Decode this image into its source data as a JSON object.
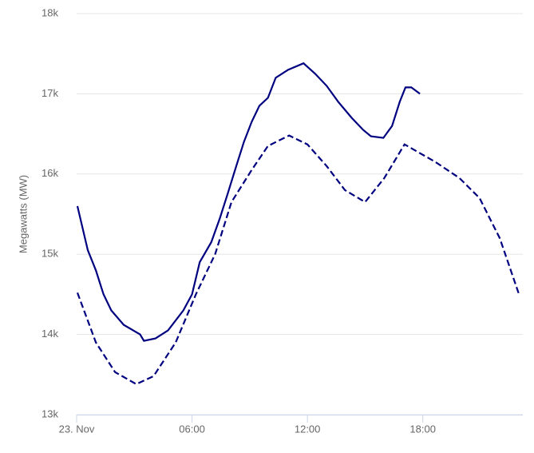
{
  "chart_data": {
    "type": "line",
    "y_label": "Megawatts (MW)",
    "xlim": [
      0,
      23.2
    ],
    "xticks": [
      {
        "value": 0,
        "label": "23. Nov"
      },
      {
        "value": 6,
        "label": "06:00"
      },
      {
        "value": 12,
        "label": "12:00"
      },
      {
        "value": 18,
        "label": "18:00"
      }
    ],
    "ylim": [
      13000,
      18000
    ],
    "yticks": [
      {
        "value": 13000,
        "label": "13k"
      },
      {
        "value": 14000,
        "label": "14k"
      },
      {
        "value": 15000,
        "label": "15k"
      },
      {
        "value": 16000,
        "label": "16k"
      },
      {
        "value": 17000,
        "label": "17k"
      },
      {
        "value": 18000,
        "label": "18k"
      }
    ],
    "grid": true,
    "series": [
      {
        "color": "#000080",
        "style": "solid",
        "x": [
          0.04,
          0.58,
          1,
          1.4,
          1.8,
          2.45,
          3.3,
          3.5,
          4.1,
          4.75,
          5.55,
          6,
          6.4,
          7,
          7.45,
          7.85,
          8.3,
          8.7,
          9.1,
          9.5,
          9.95,
          10.35,
          11,
          11.8,
          12.4,
          13,
          13.6,
          14.3,
          14.9,
          15.3,
          15.95,
          16.4,
          16.8,
          17.1,
          17.4,
          17.85
        ],
        "values": [
          15600,
          15050,
          14800,
          14500,
          14300,
          14120,
          14000,
          13920,
          13950,
          14050,
          14300,
          14500,
          14900,
          15150,
          15450,
          15750,
          16100,
          16400,
          16650,
          16850,
          16950,
          17200,
          17300,
          17380,
          17250,
          17100,
          16900,
          16700,
          16550,
          16470,
          16450,
          16600,
          16900,
          17080,
          17080,
          17000
        ]
      },
      {
        "color": "#000080",
        "style": "dashed",
        "x": [
          0.04,
          1,
          2,
          3.1,
          4,
          5.15,
          6.2,
          7.2,
          8.05,
          9.1,
          9.95,
          11.05,
          12,
          13,
          13.95,
          15,
          16,
          17.05,
          18.65,
          19.9,
          20.95,
          22,
          23
        ],
        "values": [
          14520,
          13900,
          13530,
          13380,
          13480,
          13900,
          14500,
          15000,
          15650,
          16050,
          16350,
          16480,
          16370,
          16100,
          15800,
          15650,
          15950,
          16370,
          16150,
          15950,
          15700,
          15200,
          14500
        ]
      }
    ]
  }
}
